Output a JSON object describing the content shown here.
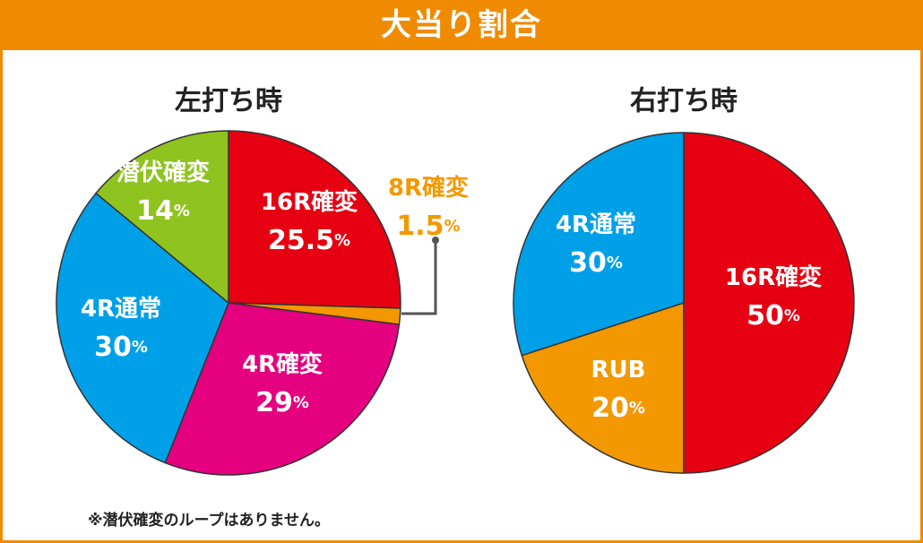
{
  "header": {
    "title": "大当り割合"
  },
  "note": "※潜伏確変のループはありません。",
  "colors": {
    "accent": "#f08a00",
    "red": "#e60012",
    "orange": "#f39800",
    "magenta": "#e4007f",
    "blue": "#00a0e9",
    "green": "#8fc31f"
  },
  "chart_data": [
    {
      "type": "pie",
      "title": "左打ち時",
      "slices": [
        {
          "label": "16R確変",
          "value": 25.5,
          "display": "25.5",
          "color": "#e60012"
        },
        {
          "label": "8R確変",
          "value": 1.5,
          "display": "1.5",
          "color": "#f39800"
        },
        {
          "label": "4R確変",
          "value": 29,
          "display": "29",
          "color": "#e4007f"
        },
        {
          "label": "4R通常",
          "value": 30,
          "display": "30",
          "color": "#00a0e9"
        },
        {
          "label": "潜伏確変",
          "value": 14,
          "display": "14",
          "color": "#8fc31f"
        }
      ]
    },
    {
      "type": "pie",
      "title": "右打ち時",
      "slices": [
        {
          "label": "16R確変",
          "value": 50,
          "display": "50",
          "color": "#e60012"
        },
        {
          "label": "RUB",
          "value": 20,
          "display": "20",
          "color": "#f39800"
        },
        {
          "label": "4R通常",
          "value": 30,
          "display": "30",
          "color": "#00a0e9"
        }
      ]
    }
  ]
}
